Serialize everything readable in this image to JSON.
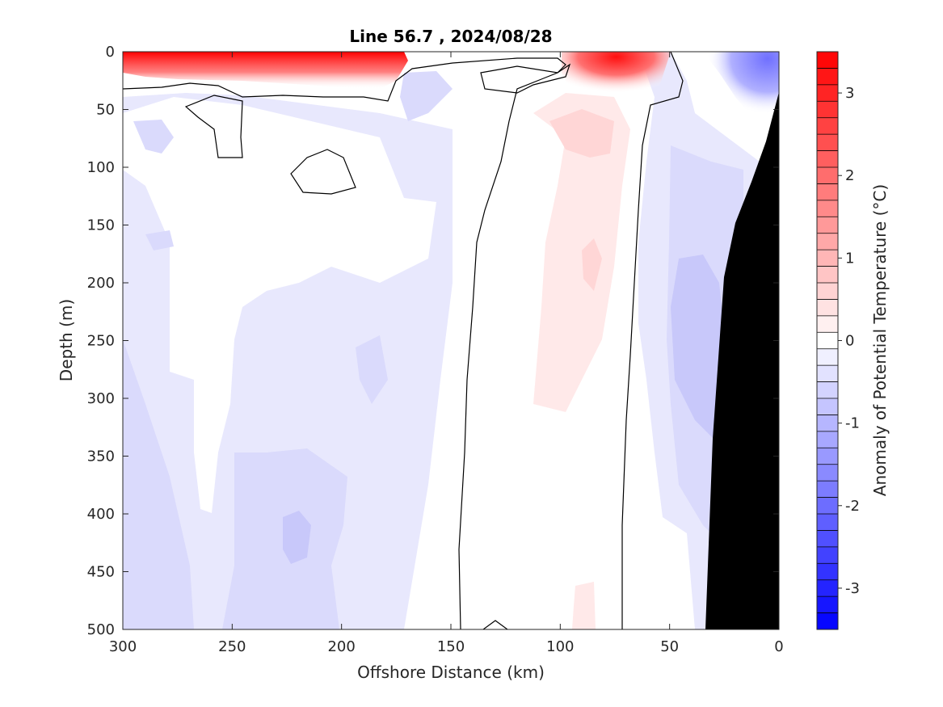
{
  "chart_data": {
    "type": "heatmap",
    "subtype": "filled-contour section",
    "title": "Line 56.7 , 2024/08/28",
    "xlabel": "Offshore Distance (km)",
    "ylabel": "Depth (m)",
    "colorbar_label": "Anomaly of Potential Temperature (°C)",
    "xlim": [
      300,
      0
    ],
    "x_reversed": true,
    "ylim": [
      0,
      500
    ],
    "y_reversed": true,
    "x_ticks": [
      "300",
      "250",
      "200",
      "150",
      "100",
      "50",
      "0"
    ],
    "y_ticks": [
      "0",
      "50",
      "100",
      "150",
      "200",
      "250",
      "300",
      "350",
      "400",
      "450",
      "500"
    ],
    "colorbar_range": [
      -3.5,
      3.5
    ],
    "colorbar_step": 0.2,
    "colorbar_ticks": [
      "3",
      "2",
      "1",
      "0",
      "-1",
      "-2",
      "-3"
    ],
    "colors": {
      "warm": "#ff0000",
      "cool": "#0000ff",
      "neutral": "#ffffff",
      "bathymetry": "#000000",
      "contour": "#000000"
    },
    "zero_contour_x_km": {
      "west_at_surface_to_bottom": [
        148,
        146
      ],
      "east_at_surface_to_bottom": [
        70,
        72
      ]
    },
    "anomaly_regions": [
      {
        "feature": "warm surface layer",
        "x_km": [
          300,
          172
        ],
        "depth_m": [
          0,
          30
        ],
        "max_anomaly": 3.4
      },
      {
        "feature": "warm surface core",
        "x_km": [
          100,
          55
        ],
        "depth_m": [
          0,
          30
        ],
        "max_anomaly": 3.0
      },
      {
        "feature": "warm subsurface tongue",
        "x_km": [
          115,
          72
        ],
        "depth_m": [
          40,
          350
        ],
        "max_anomaly": 0.8
      },
      {
        "feature": "cool nearshore",
        "x_km": [
          52,
          5
        ],
        "depth_m": [
          50,
          450
        ],
        "min_anomaly": -1.2
      },
      {
        "feature": "cool surface nearshore",
        "x_km": [
          30,
          0
        ],
        "depth_m": [
          0,
          40
        ],
        "min_anomaly": -1.6
      },
      {
        "feature": "cool offshore column",
        "x_km": [
          245,
          190
        ],
        "depth_m": [
          350,
          500
        ],
        "min_anomaly": -0.8
      },
      {
        "feature": "cool offshore patch",
        "x_km": [
          300,
          265
        ],
        "depth_m": [
          300,
          500
        ],
        "min_anomaly": -0.6
      }
    ],
    "bathymetry_profile": [
      [
        0,
        35
      ],
      [
        10,
        110
      ],
      [
        20,
        148
      ],
      [
        25,
        195
      ],
      [
        30,
        330
      ],
      [
        33,
        500
      ]
    ]
  }
}
